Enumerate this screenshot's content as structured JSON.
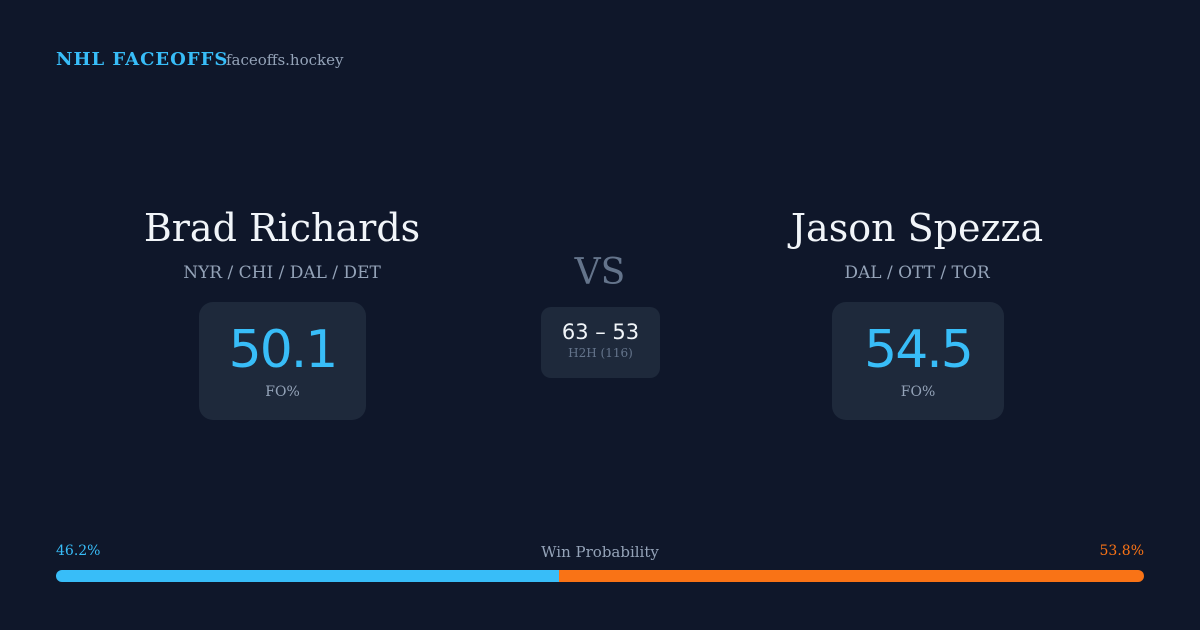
{
  "header": {
    "title": "NHL FACEOFFS",
    "site": "faceoffs.hockey"
  },
  "players": [
    {
      "name": "Brad Richards",
      "teams": "NYR / CHI / DAL / DET",
      "fo_pct": 50.1,
      "fo_label": "FO%"
    },
    {
      "name": "Jason Spezza",
      "teams": "DAL / OTT / TOR",
      "fo_pct": 54.5,
      "fo_label": "FO%"
    }
  ],
  "vs": "VS",
  "h2h": {
    "score": "63 – 53",
    "label": "H2H (116)"
  },
  "win_probability": {
    "label": "Win Probability",
    "values": [
      46.2,
      53.8
    ],
    "value_labels": [
      "46.2%",
      "53.8%"
    ],
    "colors": [
      "#38bdf8",
      "#f97316"
    ]
  }
}
